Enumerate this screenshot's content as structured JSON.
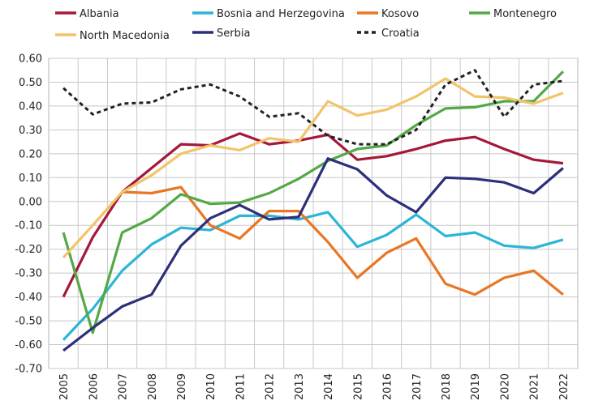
{
  "chart_data": {
    "type": "line",
    "title": "",
    "xlabel": "",
    "ylabel": "",
    "ylim": [
      -0.7,
      0.6
    ],
    "grid": true,
    "legend_position": "top",
    "x": [
      "2005",
      "2006",
      "2007",
      "2008",
      "2009",
      "2010",
      "2011",
      "2012",
      "2013",
      "2014",
      "2015",
      "2016",
      "2017",
      "2018",
      "2019",
      "2020",
      "2021",
      "2022"
    ],
    "y_ticks": [
      "0.60",
      "0.50",
      "0.40",
      "0.30",
      "0.20",
      "0.10",
      "0.00",
      "-0.10",
      "-0.20",
      "-0.30",
      "-0.40",
      "-0.50",
      "-0.60",
      "-0.70"
    ],
    "series": [
      {
        "name": "Albania",
        "color": "#a4183a",
        "dash": false,
        "values": [
          -0.4,
          -0.15,
          0.04,
          0.14,
          0.24,
          0.235,
          0.285,
          0.24,
          0.255,
          0.28,
          0.175,
          0.19,
          0.22,
          0.255,
          0.27,
          0.22,
          0.175,
          0.16
        ]
      },
      {
        "name": "Bosnia and Herzegovina",
        "color": "#2cb5d6",
        "dash": false,
        "values": [
          -0.58,
          -0.45,
          -0.29,
          -0.18,
          -0.11,
          -0.12,
          -0.06,
          -0.06,
          -0.075,
          -0.045,
          -0.19,
          -0.14,
          -0.055,
          -0.145,
          -0.13,
          -0.185,
          -0.195,
          -0.16
        ]
      },
      {
        "name": "Kosovo",
        "color": "#e97623",
        "dash": false,
        "values": [
          null,
          null,
          0.04,
          0.035,
          0.06,
          -0.1,
          -0.155,
          -0.04,
          -0.04,
          -0.17,
          -0.32,
          -0.215,
          -0.155,
          -0.345,
          -0.39,
          -0.32,
          -0.29,
          -0.39
        ]
      },
      {
        "name": "Montenegro",
        "color": "#54a845",
        "dash": false,
        "values": [
          -0.13,
          -0.55,
          -0.13,
          -0.07,
          0.03,
          -0.01,
          -0.005,
          0.035,
          0.095,
          0.17,
          0.22,
          0.235,
          0.32,
          0.39,
          0.395,
          0.42,
          0.42,
          0.545
        ]
      },
      {
        "name": "North Macedonia",
        "color": "#f2c46a",
        "dash": false,
        "values": [
          -0.235,
          -0.1,
          0.04,
          0.11,
          0.2,
          0.235,
          0.215,
          0.265,
          0.25,
          0.42,
          0.36,
          0.385,
          0.44,
          0.515,
          0.44,
          0.435,
          0.41,
          0.455
        ]
      },
      {
        "name": "Serbia",
        "color": "#2d2f7a",
        "dash": false,
        "values": [
          -0.625,
          -0.53,
          -0.44,
          -0.39,
          -0.185,
          -0.07,
          -0.015,
          -0.075,
          -0.065,
          0.18,
          0.135,
          0.025,
          -0.045,
          0.1,
          0.095,
          0.08,
          0.035,
          0.14
        ]
      },
      {
        "name": "Croatia",
        "color": "#222222",
        "dash": true,
        "values": [
          0.475,
          0.365,
          0.41,
          0.415,
          0.47,
          0.49,
          0.44,
          0.355,
          0.37,
          0.275,
          0.24,
          0.24,
          0.3,
          0.49,
          0.55,
          0.355,
          0.49,
          0.505
        ]
      }
    ]
  }
}
